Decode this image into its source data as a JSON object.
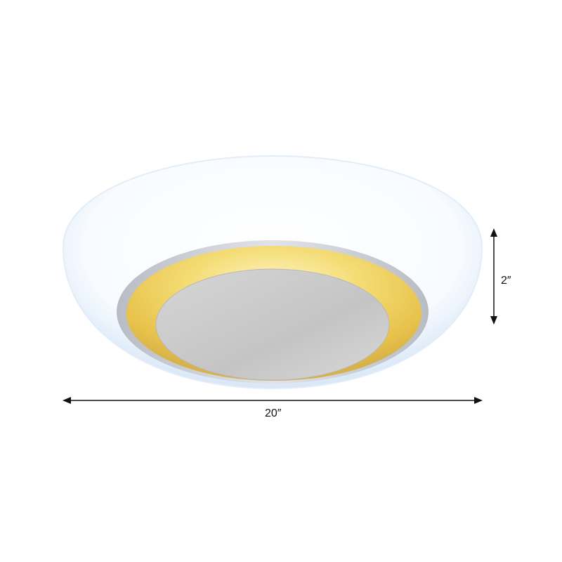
{
  "product": {
    "name": "",
    "colors": {
      "shade": "#ffffff",
      "shade_edge": "#dce9f7",
      "glow": "#f2d15a",
      "disc": "#c9c9c9"
    }
  },
  "dimensions": {
    "width_label": "20″",
    "height_label": "2″"
  }
}
